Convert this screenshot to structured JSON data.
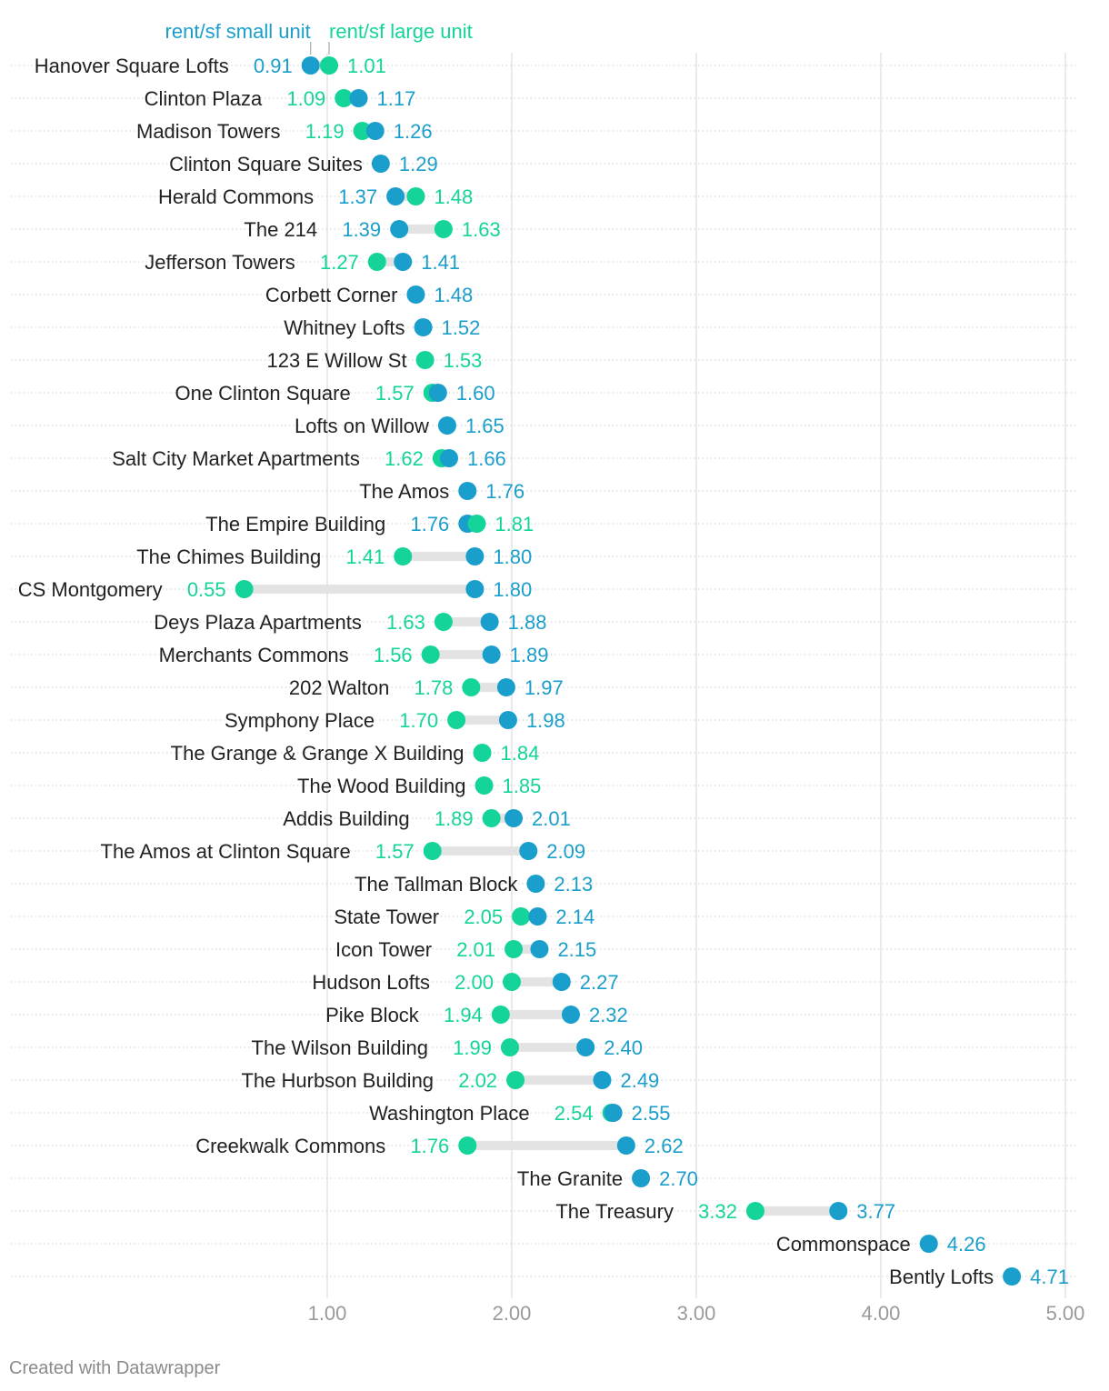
{
  "credit": "Created with Datawrapper",
  "chart_data": {
    "type": "dot-range",
    "legend": {
      "small_label": "rent/sf small unit",
      "large_label": "rent/sf large unit"
    },
    "colors": {
      "small": "#1a9ecb",
      "large": "#14d49a",
      "range": "#e3e3e3",
      "label": "#222222",
      "grid": "#dddddd",
      "tick": "#9a9a9a"
    },
    "x_axis": {
      "min": 0.85,
      "max": 5.05,
      "ticks": [
        1,
        2,
        3,
        4,
        5
      ],
      "tick_labels": [
        "1.00",
        "2.00",
        "3.00",
        "4.00",
        "5.00"
      ]
    },
    "rows": [
      {
        "name": "Hanover Square Lofts",
        "small": 0.91,
        "large": 1.01
      },
      {
        "name": "Clinton Plaza",
        "small": 1.17,
        "large": 1.09
      },
      {
        "name": "Madison Towers",
        "small": 1.26,
        "large": 1.19
      },
      {
        "name": "Clinton Square Suites",
        "small": 1.29,
        "large": null
      },
      {
        "name": "Herald Commons",
        "small": 1.37,
        "large": 1.48
      },
      {
        "name": "The 214",
        "small": 1.39,
        "large": 1.63
      },
      {
        "name": "Jefferson Towers",
        "small": 1.41,
        "large": 1.27
      },
      {
        "name": "Corbett Corner",
        "small": 1.48,
        "large": null
      },
      {
        "name": "Whitney Lofts",
        "small": 1.52,
        "large": null
      },
      {
        "name": "123 E Willow St",
        "small": null,
        "large": 1.53
      },
      {
        "name": "One Clinton Square",
        "small": 1.6,
        "large": 1.57
      },
      {
        "name": "Lofts on Willow",
        "small": 1.65,
        "large": null
      },
      {
        "name": "Salt City Market Apartments",
        "small": 1.66,
        "large": 1.62
      },
      {
        "name": "The Amos",
        "small": 1.76,
        "large": null
      },
      {
        "name": "The Empire Building",
        "small": 1.76,
        "large": 1.81
      },
      {
        "name": "The Chimes Building",
        "small": 1.8,
        "large": 1.41
      },
      {
        "name": "CS Montgomery",
        "small": 1.8,
        "large": 0.55
      },
      {
        "name": "Deys Plaza Apartments",
        "small": 1.88,
        "large": 1.63
      },
      {
        "name": "Merchants Commons",
        "small": 1.89,
        "large": 1.56
      },
      {
        "name": "202 Walton",
        "small": 1.97,
        "large": 1.78
      },
      {
        "name": "Symphony Place",
        "small": 1.98,
        "large": 1.7
      },
      {
        "name": "The Grange & Grange X Building",
        "small": null,
        "large": 1.84
      },
      {
        "name": "The Wood Building",
        "small": null,
        "large": 1.85
      },
      {
        "name": "Addis Building",
        "small": 2.01,
        "large": 1.89
      },
      {
        "name": "The Amos at Clinton Square",
        "small": 2.09,
        "large": 1.57
      },
      {
        "name": "The Tallman Block",
        "small": 2.13,
        "large": null
      },
      {
        "name": "State Tower",
        "small": 2.14,
        "large": 2.05
      },
      {
        "name": "Icon Tower",
        "small": 2.15,
        "large": 2.01
      },
      {
        "name": "Hudson Lofts",
        "small": 2.27,
        "large": 2.0
      },
      {
        "name": "Pike Block",
        "small": 2.32,
        "large": 1.94
      },
      {
        "name": "The Wilson Building",
        "small": 2.4,
        "large": 1.99
      },
      {
        "name": "The Hurbson Building",
        "small": 2.49,
        "large": 2.02
      },
      {
        "name": "Washington Place",
        "small": 2.55,
        "large": 2.54
      },
      {
        "name": "Creekwalk Commons",
        "small": 2.62,
        "large": 1.76
      },
      {
        "name": "The Granite",
        "small": 2.7,
        "large": null
      },
      {
        "name": "The Treasury",
        "small": 3.77,
        "large": 3.32
      },
      {
        "name": "Commonspace",
        "small": 4.26,
        "large": null
      },
      {
        "name": "Bently Lofts",
        "small": 4.71,
        "large": null
      }
    ]
  }
}
